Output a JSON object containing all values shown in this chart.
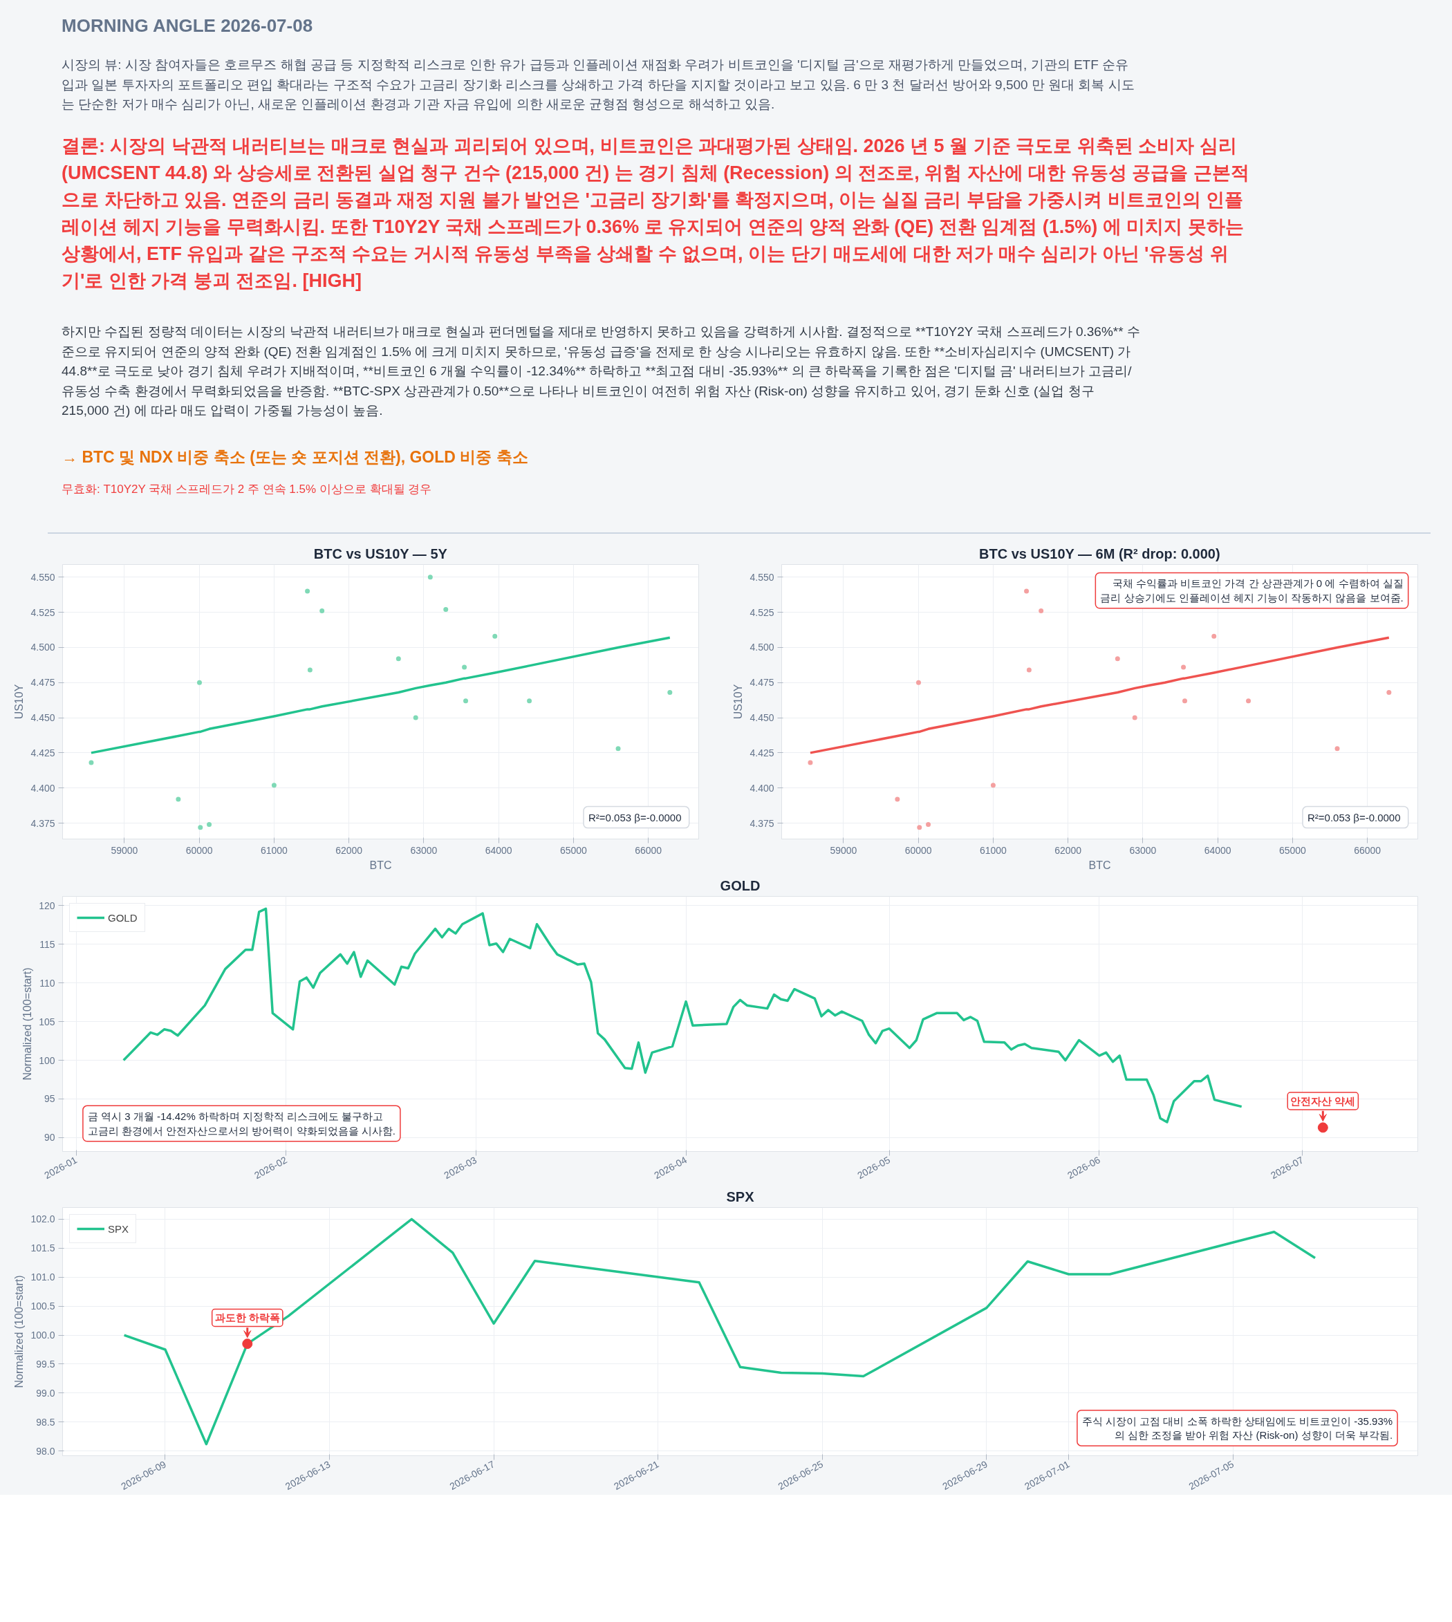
{
  "chart_data": [
    {
      "type": "other",
      "title": "MORNING ANGLE  2026-07-08",
      "annotations": [
        "시장의 뷰: 시장 참여자들은 호르무즈 해협 공급 등 지정학적 리스크로 인한 유가 급등과 인플레이션 재점화 우려가 비트코인을 '디지털 금'으로 재평가하게 만들었으며, 기관의 ETF 순유입과 일본 투자자의 포트폴리오 편입 확대라는 구조적 수요가 고금리 장기화 리스크를 상쇄하고 가격 하단을 지지할 것이라고 보고 있음. 6 만 3 천 달러선 방어와 9,500 만 원대 회복 시도는 단순한 저가 매수 심리가 아닌, 새로운 인플레이션 환경과 기관 자금 유입에 의한 새로운 균형점 형성으로 해석하고 있음.",
        "결론: 시장의 낙관적 내러티브는 매크로 현실과 괴리되어 있으며, 비트코인은 과대평가된 상태임. 2026 년 5 월 기준 극도로 위축된 소비자 심리 (UMCSENT 44.8) 와 상승세로 전환된 실업 청구 건수 (215,000 건) 는 경기 침체 (Recession) 의 전조로, 위험 자산에 대한 유동성 공급을 근본적으로 차단하고 있음. 연준의 금리 동결과 재정 지원 불가 발언은 '고금리 장기화'를 확정지으며, 이는 실질 금리 부담을 가중시켜 비트코인의 인플레이션 헤지 기능을 무력화시킴. 또한 T10Y2Y 국채 스프레드가 0.36% 로 유지되어 연준의 양적 완화 (QE) 전환 임계점 (1.5%) 에 미치지 못하는 상황에서, ETF 유입과 같은 구조적 수요는 거시적 유동성 부족을 상쇄할 수 없으며, 이는 단기 매도세에 대한 저가 매수 심리가 아닌 '유동성 위기'로 인한 가격 붕괴 전조임.  [HIGH]",
        "하지만 수집된 정량적 데이터는 시장의 낙관적 내러티브가 매크로 현실과 펀더멘털을 제대로 반영하지 못하고 있음을 강력하게 시사함. 결정적으로 **T10Y2Y 국채 스프레드가 0.36%** 수준으로 유지되어 연준의 양적 완화 (QE) 전환 임계점인 1.5% 에 크게 미치지 못하므로, '유동성 급증'을 전제로 한 상승 시나리오는 유효하지 않음. 또한 **소비자심리지수 (UMCSENT) 가 44.8**로 극도로 낮아 경기 침체 우려가 지배적이며, **비트코인 6 개월 수익률이 -12.34%** 하락하고 **최고점 대비 -35.93%** 의 큰 하락폭을 기록한 점은 '디지털 금' 내러티브가 고금리/유동성 수축 환경에서 무력화되었음을 반증함. **BTC-SPX 상관관계가 0.50**으로 나타나 비트코인이 여전히 위험 자산 (Risk-on) 성향을 유지하고 있어, 경기 둔화 신호 (실업 청구 215,000 건) 에 따라 매도 압력이 가중될 가능성이 높음.",
        "→ BTC 및 NDX 비중 축소 (또는 숏 포지션 전환), GOLD 비중 축소",
        "무효화: T10Y2Y 국채 스프레드가 2 주 연속 1.5% 이상으로 확대될 경우"
      ]
    },
    {
      "type": "scatter",
      "title": "BTC vs US10Y — 5Y",
      "xlabel": "BTC",
      "ylabel": "US10Y",
      "grid": true,
      "xlim": [
        58174,
        66673
      ],
      "ylim": [
        4.3637,
        4.559
      ],
      "xticks": [
        59000,
        60000,
        61000,
        62000,
        63000,
        64000,
        65000,
        66000
      ],
      "yticks": [
        4.375,
        {
          "value": 4.4,
          "label": "4.400"
        },
        4.425,
        {
          "value": 4.45,
          "label": "4.450"
        },
        4.475,
        {
          "value": 4.5,
          "label": "4.500"
        },
        4.525,
        {
          "value": 4.55,
          "label": "4.550"
        }
      ],
      "x": [
        58557,
        59720,
        60003,
        60015,
        60133,
        61000,
        61445,
        61480,
        61640,
        62662,
        62892,
        63087,
        63294,
        63542,
        63560,
        63950,
        64410,
        65597,
        66288
      ],
      "series": [
        {
          "color": "#7fd9b6",
          "marker": "circle",
          "values": [
            4.418,
            4.392,
            4.475,
            4.372,
            4.374,
            4.402,
            4.54,
            4.484,
            4.526,
            4.492,
            4.45,
            4.55,
            4.527,
            4.486,
            4.462,
            4.508,
            4.462,
            4.428,
            4.468
          ]
        },
        {
          "type": "line",
          "color": "#22c38e",
          "values": [
            4.425,
            4.437,
            4.44,
            4.44,
            4.442,
            4.451,
            4.456,
            4.456,
            4.458,
            4.468,
            4.471,
            4.473,
            4.475,
            4.478,
            4.478,
            4.482,
            4.487,
            4.5,
            4.507
          ]
        }
      ],
      "annotations": [
        "R²=0.053  β=-0.0000"
      ]
    },
    {
      "type": "scatter",
      "title": "BTC vs US10Y — 6M (R² drop: 0.000)",
      "xlabel": "BTC",
      "ylabel": "US10Y",
      "grid": true,
      "xlim": [
        58174,
        66673
      ],
      "ylim": [
        4.3637,
        4.559
      ],
      "xticks": [
        59000,
        60000,
        61000,
        62000,
        63000,
        64000,
        65000,
        66000
      ],
      "yticks": [
        4.375,
        {
          "value": 4.4,
          "label": "4.400"
        },
        4.425,
        {
          "value": 4.45,
          "label": "4.450"
        },
        4.475,
        {
          "value": 4.5,
          "label": "4.500"
        },
        4.525,
        {
          "value": 4.55,
          "label": "4.550"
        }
      ],
      "x": [
        58557,
        59720,
        60003,
        60015,
        60133,
        61000,
        61445,
        61480,
        61640,
        62662,
        62892,
        63087,
        63294,
        63542,
        63560,
        63950,
        64410,
        65597,
        66288
      ],
      "series": [
        {
          "color": "#f4a0a0",
          "marker": "circle",
          "values": [
            4.418,
            4.392,
            4.475,
            4.372,
            4.374,
            4.402,
            4.54,
            4.484,
            4.526,
            4.492,
            4.45,
            null,
            null,
            4.486,
            4.462,
            4.508,
            4.462,
            4.428,
            4.468
          ]
        },
        {
          "type": "line",
          "color": "#ef5350",
          "values": [
            4.425,
            4.437,
            4.44,
            4.44,
            4.442,
            4.451,
            4.456,
            4.456,
            4.458,
            4.468,
            4.471,
            4.473,
            4.475,
            4.478,
            4.478,
            4.482,
            4.487,
            4.5,
            4.507
          ]
        }
      ],
      "annotations": [
        "R²=0.053  β=-0.0000",
        "국채 수익률과 비트코인 가격 간 상관관계가 0 에 수렴하여 실질 금리 상승기에도 인플레이션 헤지 기능이 작동하지 않음을 보여줌."
      ]
    },
    {
      "type": "line",
      "title": "GOLD",
      "ylabel": "Normalized (100=start)",
      "grid": true,
      "legend": "top left",
      "xlim": [
        "2025-12-30",
        "2026-07-18"
      ],
      "ylim": [
        88.2,
        121.2
      ],
      "xticks": [
        "2026-01",
        "2026-02",
        "2026-03",
        "2026-04",
        "2026-05",
        "2026-06",
        "2026-07"
      ],
      "yticks": [
        90,
        95,
        100,
        105,
        110,
        115,
        120
      ],
      "x": [
        "2026-01-08",
        "2026-01-12",
        "2026-01-13",
        "2026-01-14",
        "2026-01-15",
        "2026-01-16",
        "2026-01-20",
        "2026-01-23",
        "2026-01-26",
        "2026-01-27",
        "2026-01-28",
        "2026-01-29",
        "2026-01-30",
        "2026-02-02",
        "2026-02-03",
        "2026-02-04",
        "2026-02-05",
        "2026-02-06",
        "2026-02-09",
        "2026-02-10",
        "2026-02-11",
        "2026-02-12",
        "2026-02-13",
        "2026-02-17",
        "2026-02-18",
        "2026-02-19",
        "2026-02-20",
        "2026-02-23",
        "2026-02-24",
        "2026-02-25",
        "2026-02-26",
        "2026-02-27",
        "2026-03-02",
        "2026-03-03",
        "2026-03-04",
        "2026-03-05",
        "2026-03-06",
        "2026-03-09",
        "2026-03-10",
        "2026-03-12",
        "2026-03-13",
        "2026-03-16",
        "2026-03-17",
        "2026-03-18",
        "2026-03-19",
        "2026-03-20",
        "2026-03-23",
        "2026-03-24",
        "2026-03-25",
        "2026-03-26",
        "2026-03-27",
        "2026-03-30",
        "2026-04-01",
        "2026-04-02",
        "2026-04-07",
        "2026-04-08",
        "2026-04-09",
        "2026-04-10",
        "2026-04-13",
        "2026-04-14",
        "2026-04-15",
        "2026-04-16",
        "2026-04-17",
        "2026-04-20",
        "2026-04-21",
        "2026-04-22",
        "2026-04-23",
        "2026-04-24",
        "2026-04-27",
        "2026-04-28",
        "2026-04-29",
        "2026-04-30",
        "2026-05-01",
        "2026-05-04",
        "2026-05-05",
        "2026-05-06",
        "2026-05-08",
        "2026-05-11",
        "2026-05-12",
        "2026-05-13",
        "2026-05-14",
        "2026-05-15",
        "2026-05-18",
        "2026-05-19",
        "2026-05-20",
        "2026-05-21",
        "2026-05-22",
        "2026-05-26",
        "2026-05-27",
        "2026-05-29",
        "2026-06-01",
        "2026-06-02",
        "2026-06-03",
        "2026-06-04",
        "2026-06-05",
        "2026-06-08",
        "2026-06-09",
        "2026-06-10",
        "2026-06-11",
        "2026-06-12",
        "2026-06-15",
        "2026-06-16",
        "2026-06-17",
        "2026-06-18",
        "2026-06-22"
      ],
      "series": [
        {
          "name": "GOLD",
          "color": "#22c38e",
          "values": [
            100.0,
            103.6,
            103.3,
            104.0,
            103.8,
            103.2,
            107.1,
            111.8,
            114.3,
            114.3,
            119.2,
            119.6,
            106.1,
            104.0,
            110.2,
            110.7,
            109.4,
            111.3,
            113.7,
            112.5,
            114.0,
            110.8,
            112.9,
            109.8,
            112.1,
            111.9,
            113.8,
            117.0,
            115.9,
            117.0,
            116.4,
            117.6,
            119.0,
            114.9,
            115.1,
            114.0,
            115.7,
            114.5,
            117.6,
            114.9,
            113.7,
            112.4,
            112.5,
            110.1,
            103.5,
            102.7,
            99.0,
            98.9,
            102.3,
            98.4,
            101.0,
            101.8,
            107.6,
            104.5,
            104.7,
            106.9,
            107.8,
            107.1,
            106.7,
            108.5,
            107.9,
            107.7,
            109.2,
            108.0,
            105.7,
            106.5,
            105.8,
            106.3,
            105.1,
            103.3,
            102.2,
            103.8,
            104.1,
            101.6,
            102.6,
            105.3,
            106.1,
            106.1,
            105.2,
            105.6,
            105.1,
            102.4,
            102.3,
            101.4,
            101.9,
            102.1,
            101.6,
            101.1,
            100.0,
            102.6,
            100.6,
            101.0,
            99.8,
            100.6,
            97.5,
            97.5,
            95.5,
            92.5,
            92.0,
            94.7,
            97.3,
            97.3,
            98.0,
            94.9,
            94.0
          ]
        }
      ],
      "annotations": [
        {
          "text": "안전자산 약세",
          "x": "2026-07-04",
          "y": 91.3
        },
        "금 역시 3 개월 -14.42% 하락하며 지정학적 리스크에도 불구하고 고금리 환경에서 안전자산으로서의 방어력이 약화되었음을 시사함."
      ]
    },
    {
      "type": "line",
      "title": "SPX",
      "ylabel": "Normalized (100=start)",
      "grid": true,
      "legend": "top left",
      "xlim": [
        "2026-06-06T12:00",
        "2026-07-09T12:00"
      ],
      "ylim": [
        97.92,
        102.2
      ],
      "xticks": [
        "2026-06-09",
        "2026-06-13",
        "2026-06-17",
        "2026-06-21",
        "2026-06-25",
        "2026-06-29",
        "2026-07-01",
        "2026-07-05"
      ],
      "yticks": [
        {
          "value": 98,
          "label": "98.0"
        },
        98.5,
        {
          "value": 99,
          "label": "99.0"
        },
        99.5,
        {
          "value": 100,
          "label": "100.0"
        },
        100.5,
        {
          "value": 101,
          "label": "101.0"
        },
        101.5,
        {
          "value": 102,
          "label": "102.0"
        }
      ],
      "x": [
        "2026-06-08",
        "2026-06-09",
        "2026-06-10",
        "2026-06-11",
        "2026-06-12",
        "2026-06-15",
        "2026-06-16",
        "2026-06-17",
        "2026-06-18",
        "2026-06-22",
        "2026-06-23",
        "2026-06-24",
        "2026-06-25",
        "2026-06-26",
        "2026-06-29",
        "2026-06-30",
        "2026-07-01",
        "2026-07-02",
        "2026-07-06",
        "2026-07-07"
      ],
      "series": [
        {
          "name": "SPX",
          "color": "#22c38e",
          "values": [
            100.0,
            99.75,
            98.12,
            99.85,
            100.33,
            102.0,
            101.42,
            100.2,
            101.28,
            100.91,
            99.45,
            99.35,
            99.34,
            99.29,
            100.47,
            101.27,
            101.05,
            101.05,
            101.78,
            101.33
          ]
        }
      ],
      "annotations": [
        {
          "text": "과도한 하락폭",
          "x": "2026-06-11",
          "y": 99.85
        },
        "주식 시장이 고점 대비 소폭 하락한 상태임에도 비트코인이 -35.93% 의 심한 조정을 받아 위험 자산 (Risk-on) 성향이 더욱 부각됨."
      ]
    }
  ]
}
